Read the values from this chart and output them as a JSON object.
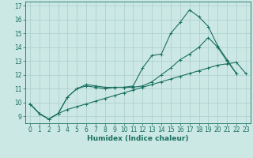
{
  "xlabel": "Humidex (Indice chaleur)",
  "bg_color": "#cce8e4",
  "grid_color": "#aacccc",
  "line_color": "#1a7060",
  "xlim": [
    -0.5,
    23.5
  ],
  "ylim": [
    8.5,
    17.3
  ],
  "xticks": [
    0,
    1,
    2,
    3,
    4,
    5,
    6,
    7,
    8,
    9,
    10,
    11,
    12,
    13,
    14,
    15,
    16,
    17,
    18,
    19,
    20,
    21,
    22,
    23
  ],
  "yticks": [
    9,
    10,
    11,
    12,
    13,
    14,
    15,
    16,
    17
  ],
  "line1_x": [
    0,
    1,
    2,
    3,
    4,
    5,
    6,
    7,
    8,
    9,
    10,
    11,
    12,
    13,
    14,
    15,
    16,
    17,
    18,
    19,
    20,
    21,
    22
  ],
  "line1_y": [
    9.9,
    9.2,
    8.8,
    9.2,
    10.4,
    11.0,
    11.3,
    11.2,
    11.1,
    11.1,
    11.1,
    11.2,
    12.5,
    13.4,
    13.5,
    15.0,
    15.8,
    16.7,
    16.2,
    15.5,
    14.1,
    13.1,
    12.1
  ],
  "line2_x": [
    0,
    1,
    2,
    3,
    4,
    5,
    6,
    7,
    8,
    9,
    10,
    11,
    12,
    13,
    14,
    15,
    16,
    17,
    18,
    19,
    20,
    21,
    22
  ],
  "line2_y": [
    9.9,
    9.2,
    8.8,
    9.2,
    10.4,
    11.0,
    11.2,
    11.1,
    11.0,
    11.1,
    11.1,
    11.1,
    11.2,
    11.5,
    12.0,
    12.5,
    13.1,
    13.5,
    14.0,
    14.7,
    14.0,
    13.0,
    12.1
  ],
  "line3_x": [
    0,
    1,
    2,
    3,
    4,
    5,
    6,
    7,
    8,
    9,
    10,
    11,
    12,
    13,
    14,
    15,
    16,
    17,
    18,
    19,
    20,
    21,
    22,
    23
  ],
  "line3_y": [
    9.9,
    9.2,
    8.8,
    9.2,
    9.5,
    9.7,
    9.9,
    10.1,
    10.3,
    10.5,
    10.7,
    10.9,
    11.1,
    11.3,
    11.5,
    11.7,
    11.9,
    12.1,
    12.3,
    12.5,
    12.7,
    12.8,
    12.9,
    12.1
  ],
  "tick_fontsize": 5.5,
  "xlabel_fontsize": 6.5
}
